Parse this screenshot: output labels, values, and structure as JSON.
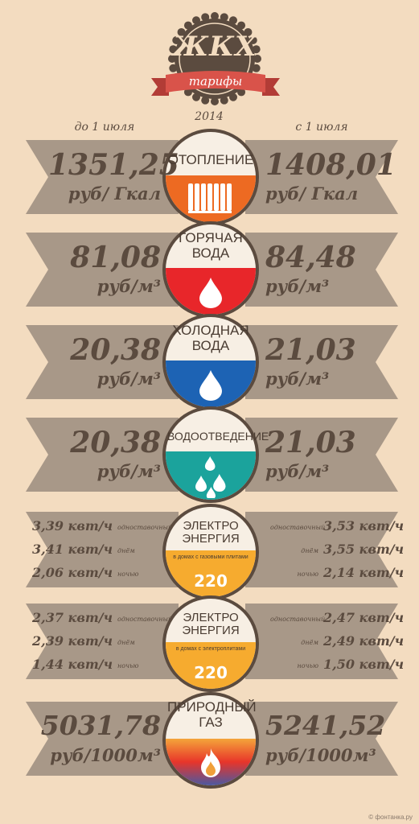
{
  "header": {
    "title": "ЖКХ",
    "ribbon": "тарифы",
    "year": "2014",
    "before_label": "до 1 июля",
    "after_label": "с 1 июля"
  },
  "colors": {
    "background": "#f3dcc0",
    "banner": "#a89888",
    "ring": "#5b4b3f",
    "ribbon": "#d9534a",
    "heating": "#ed6a22",
    "hot_water": "#e8262a",
    "cold_water": "#1d63b4",
    "drainage": "#1ba39c",
    "electricity": "#f6ab2f",
    "text": "#5b4b3f"
  },
  "services": [
    {
      "name_line1": "ОТОПЛЕНИЕ",
      "name_line2": "",
      "icon": "radiator-icon",
      "before_value": "1351,25",
      "before_unit": "руб/ Гкал",
      "after_value": "1408,01",
      "after_unit": "руб/ Гкал"
    },
    {
      "name_line1": "ГОРЯЧАЯ",
      "name_line2": "ВОДА",
      "icon": "water-drop-icon",
      "before_value": "81,08",
      "before_unit": "руб/м³",
      "after_value": "84,48",
      "after_unit": "руб/м³"
    },
    {
      "name_line1": "ХОЛОДНАЯ",
      "name_line2": "ВОДА",
      "icon": "water-drop-icon",
      "before_value": "20,38",
      "before_unit": "руб/м³",
      "after_value": "21,03",
      "after_unit": "руб/м³"
    },
    {
      "name_line1": "ВОДООТВЕДЕНИЕ",
      "name_line2": "",
      "icon": "water-drops-icon",
      "before_value": "20,38",
      "before_unit": "руб/м³",
      "after_value": "21,03",
      "after_unit": "руб/м³"
    }
  ],
  "electricity": [
    {
      "name_line1": "ЭЛЕКТРО",
      "name_line2": "ЭНЕРГИЯ",
      "note": "в домах с газовыми плитами",
      "badge": "220",
      "before": [
        {
          "value": "3,39 квт/ч",
          "label": "одноставочный"
        },
        {
          "value": "3,41 квт/ч",
          "label": "днём"
        },
        {
          "value": "2,06 квт/ч",
          "label": "ночью"
        }
      ],
      "after": [
        {
          "value": "3,53 квт/ч",
          "label": "одноставочный"
        },
        {
          "value": "3,55 квт/ч",
          "label": "днём"
        },
        {
          "value": "2,14 квт/ч",
          "label": "ночью"
        }
      ]
    },
    {
      "name_line1": "ЭЛЕКТРО",
      "name_line2": "ЭНЕРГИЯ",
      "note": "в домах с электроплитами",
      "badge": "220",
      "before": [
        {
          "value": "2,37 квт/ч",
          "label": "одноставочный"
        },
        {
          "value": "2,39 квт/ч",
          "label": "днём"
        },
        {
          "value": "1,44 квт/ч",
          "label": "ночью"
        }
      ],
      "after": [
        {
          "value": "2,47 квт/ч",
          "label": "одноставочный"
        },
        {
          "value": "2,49 квт/ч",
          "label": "днём"
        },
        {
          "value": "1,50 квт/ч",
          "label": "ночью"
        }
      ]
    }
  ],
  "gas": {
    "name_line1": "ПРИРОДНЫЙ",
    "name_line2": "ГАЗ",
    "icon": "flame-icon",
    "before_value": "5031,78",
    "before_unit": "руб/1000м³",
    "after_value": "5241,52",
    "after_unit": "руб/1000м³"
  },
  "credit": "© фонтанка.ру"
}
